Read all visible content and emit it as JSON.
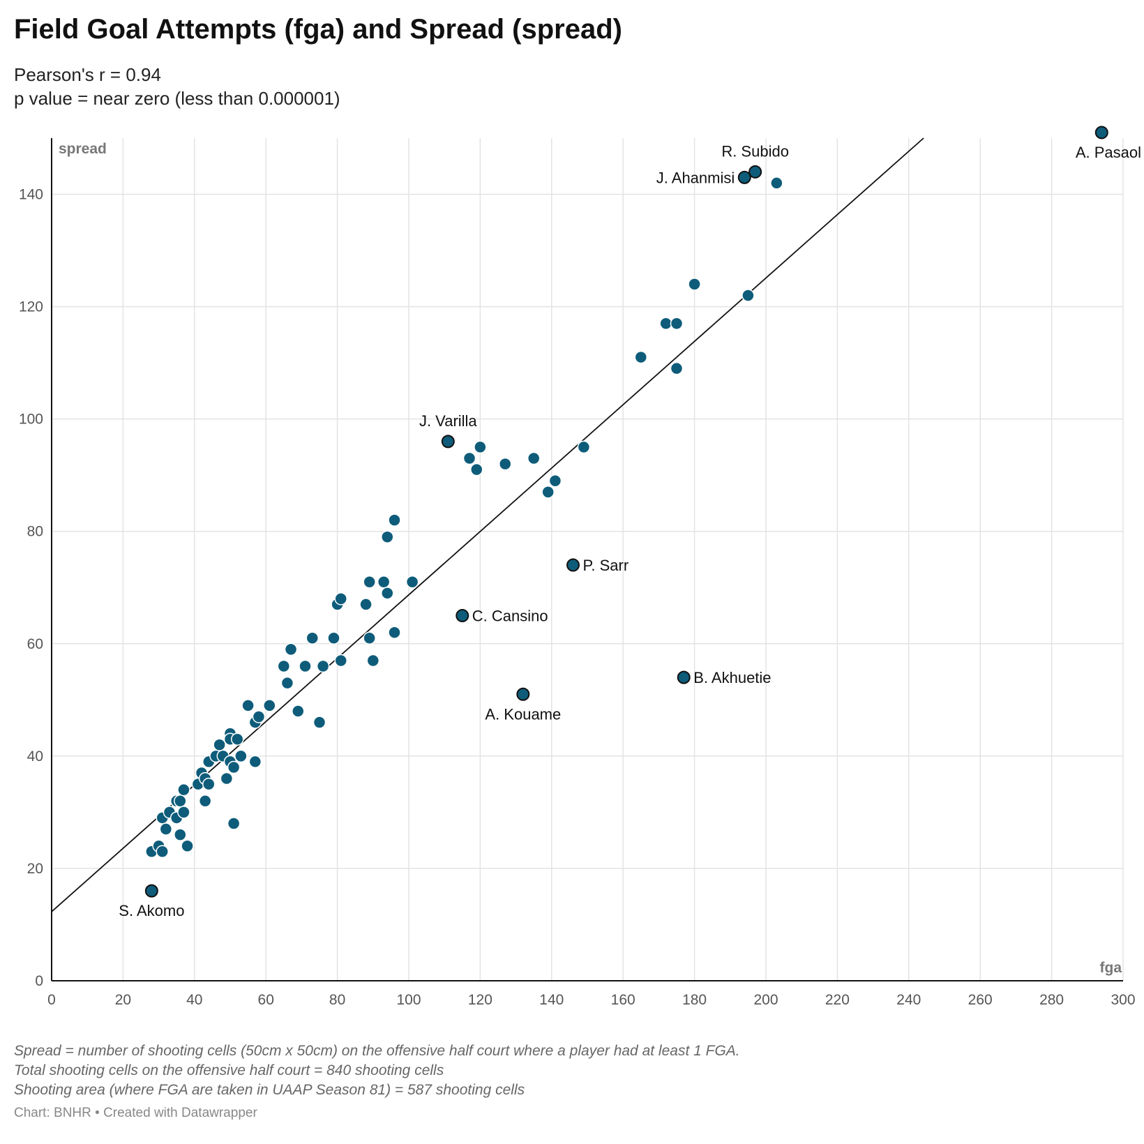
{
  "header": {
    "title": "Field Goal Attempts (fga) and Spread (spread)",
    "subtitle_line1": "Pearson's r = 0.94",
    "subtitle_line2": "p value = near zero (less than 0.000001)"
  },
  "footer": {
    "note_line1": "Spread = number of shooting cells (50cm x 50cm) on the offensive half court where a player had at least 1 FGA.",
    "note_line2": "Total shooting cells on the offensive half court = 840 shooting cells",
    "note_line3": "Shooting area (where FGA are taken in UAAP Season 81) = 587 shooting cells",
    "credit": "Chart: BNHR • Created with Datawrapper"
  },
  "colors": {
    "point_fill": "#0e5c7a",
    "point_stroke": "#ffffff",
    "highlight_stroke": "#111111",
    "trend_line": "#111111",
    "grid": "#e3e3e3"
  },
  "chart_data": {
    "type": "scatter",
    "xlabel": "fga",
    "ylabel": "spread",
    "xlim": [
      0,
      300
    ],
    "ylim": [
      0,
      150
    ],
    "x_ticks": [
      0,
      20,
      40,
      60,
      80,
      100,
      120,
      140,
      160,
      180,
      200,
      220,
      240,
      260,
      280,
      300
    ],
    "y_ticks": [
      0,
      20,
      40,
      60,
      80,
      100,
      120,
      140
    ],
    "grid": true,
    "trend_line": {
      "intercept": 12.3,
      "slope": 0.564
    },
    "points": [
      {
        "x": 28,
        "y": 23
      },
      {
        "x": 30,
        "y": 24
      },
      {
        "x": 31,
        "y": 23
      },
      {
        "x": 31,
        "y": 29
      },
      {
        "x": 32,
        "y": 27
      },
      {
        "x": 33,
        "y": 30
      },
      {
        "x": 35,
        "y": 29
      },
      {
        "x": 35,
        "y": 32
      },
      {
        "x": 36,
        "y": 32
      },
      {
        "x": 36,
        "y": 26
      },
      {
        "x": 37,
        "y": 34
      },
      {
        "x": 37,
        "y": 30
      },
      {
        "x": 38,
        "y": 24
      },
      {
        "x": 41,
        "y": 35
      },
      {
        "x": 42,
        "y": 37
      },
      {
        "x": 43,
        "y": 36
      },
      {
        "x": 43,
        "y": 32
      },
      {
        "x": 44,
        "y": 39
      },
      {
        "x": 44,
        "y": 35
      },
      {
        "x": 46,
        "y": 40
      },
      {
        "x": 47,
        "y": 42
      },
      {
        "x": 48,
        "y": 40
      },
      {
        "x": 49,
        "y": 36
      },
      {
        "x": 50,
        "y": 44
      },
      {
        "x": 50,
        "y": 43
      },
      {
        "x": 50,
        "y": 39
      },
      {
        "x": 51,
        "y": 38
      },
      {
        "x": 51,
        "y": 28
      },
      {
        "x": 52,
        "y": 43
      },
      {
        "x": 53,
        "y": 40
      },
      {
        "x": 55,
        "y": 49
      },
      {
        "x": 57,
        "y": 46
      },
      {
        "x": 57,
        "y": 39
      },
      {
        "x": 58,
        "y": 47
      },
      {
        "x": 61,
        "y": 49
      },
      {
        "x": 65,
        "y": 56
      },
      {
        "x": 66,
        "y": 53
      },
      {
        "x": 67,
        "y": 59
      },
      {
        "x": 69,
        "y": 48
      },
      {
        "x": 71,
        "y": 56
      },
      {
        "x": 73,
        "y": 61
      },
      {
        "x": 75,
        "y": 46
      },
      {
        "x": 76,
        "y": 56
      },
      {
        "x": 79,
        "y": 61
      },
      {
        "x": 80,
        "y": 67
      },
      {
        "x": 81,
        "y": 68
      },
      {
        "x": 81,
        "y": 57
      },
      {
        "x": 88,
        "y": 67
      },
      {
        "x": 89,
        "y": 71
      },
      {
        "x": 89,
        "y": 61
      },
      {
        "x": 90,
        "y": 57
      },
      {
        "x": 93,
        "y": 71
      },
      {
        "x": 94,
        "y": 79
      },
      {
        "x": 94,
        "y": 69
      },
      {
        "x": 96,
        "y": 82
      },
      {
        "x": 96,
        "y": 62
      },
      {
        "x": 101,
        "y": 71
      },
      {
        "x": 117,
        "y": 93
      },
      {
        "x": 119,
        "y": 91
      },
      {
        "x": 120,
        "y": 95
      },
      {
        "x": 127,
        "y": 92
      },
      {
        "x": 135,
        "y": 93
      },
      {
        "x": 139,
        "y": 87
      },
      {
        "x": 141,
        "y": 89
      },
      {
        "x": 149,
        "y": 95
      },
      {
        "x": 165,
        "y": 111
      },
      {
        "x": 172,
        "y": 117
      },
      {
        "x": 175,
        "y": 117
      },
      {
        "x": 175,
        "y": 109
      },
      {
        "x": 180,
        "y": 124
      },
      {
        "x": 195,
        "y": 122
      },
      {
        "x": 203,
        "y": 142
      }
    ],
    "highlighted": [
      {
        "label": "A. Pasaol",
        "x": 294,
        "y": 151,
        "label_pos": "below"
      },
      {
        "label": "R. Subido",
        "x": 197,
        "y": 144,
        "label_pos": "above"
      },
      {
        "label": "J. Ahanmisi",
        "x": 194,
        "y": 143,
        "label_pos": "left"
      },
      {
        "label": "J. Varilla",
        "x": 111,
        "y": 96,
        "label_pos": "above"
      },
      {
        "label": "P. Sarr",
        "x": 146,
        "y": 74,
        "label_pos": "right"
      },
      {
        "label": "C. Cansino",
        "x": 115,
        "y": 65,
        "label_pos": "right"
      },
      {
        "label": "B. Akhuetie",
        "x": 177,
        "y": 54,
        "label_pos": "right"
      },
      {
        "label": "A. Kouame",
        "x": 132,
        "y": 51,
        "label_pos": "below"
      },
      {
        "label": "S. Akomo",
        "x": 28,
        "y": 16,
        "label_pos": "below"
      }
    ]
  }
}
